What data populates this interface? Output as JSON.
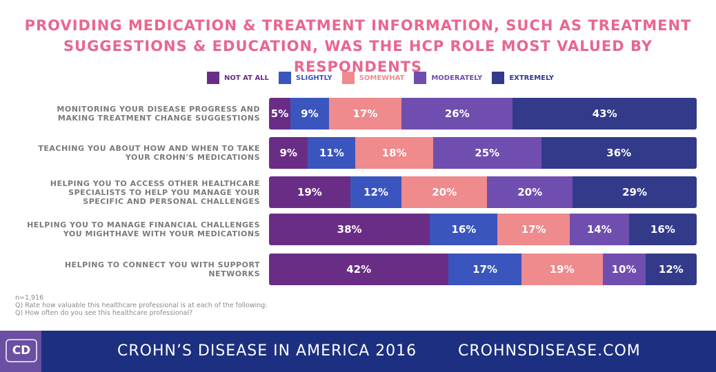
{
  "chart_data": {
    "type": "bar",
    "orientation": "horizontal-stacked",
    "title": "Providing medication & treatment information, such as treatment suggestions & education, was the HCP role most valued by respondents",
    "legend": [
      "NOT AT ALL",
      "SLIGHTLY",
      "SOMEWHAT",
      "MODERATELY",
      "EXTREMELY"
    ],
    "legend_placement": "top",
    "colors": [
      "#6a2d86",
      "#3a55be",
      "#ef8a8d",
      "#6f4eaf",
      "#333a8a"
    ],
    "categories": [
      "Monitoring your disease progress and making treatment change suggestions",
      "Teaching you about how and when to take your Crohn's medications",
      "Helping you to access other healthcare specialists to help you manage your specific and personal challenges",
      "Helping you to manage financial challenges you mighthave with your medications",
      "Helping to connect you with support networks"
    ],
    "series": [
      {
        "name": "NOT AT ALL",
        "values": [
          5,
          9,
          19,
          38,
          42
        ]
      },
      {
        "name": "SLIGHTLY",
        "values": [
          9,
          11,
          12,
          16,
          17
        ]
      },
      {
        "name": "SOMEWHAT",
        "values": [
          17,
          18,
          20,
          17,
          19
        ]
      },
      {
        "name": "MODERATELY",
        "values": [
          26,
          25,
          20,
          14,
          10
        ]
      },
      {
        "name": "EXTREMELY",
        "values": [
          43,
          36,
          29,
          16,
          12
        ]
      }
    ]
  },
  "notes": [
    "n=1,916",
    "Q) Rate how valuable this healthcare professional is at each of the following:",
    "Q) How often do you see this healthcare professional?"
  ],
  "footer": {
    "logo": "CD",
    "text": "CROHN’S DISEASE IN AMERICA 2016",
    "url": "CROHNSDISEASE.COM"
  }
}
